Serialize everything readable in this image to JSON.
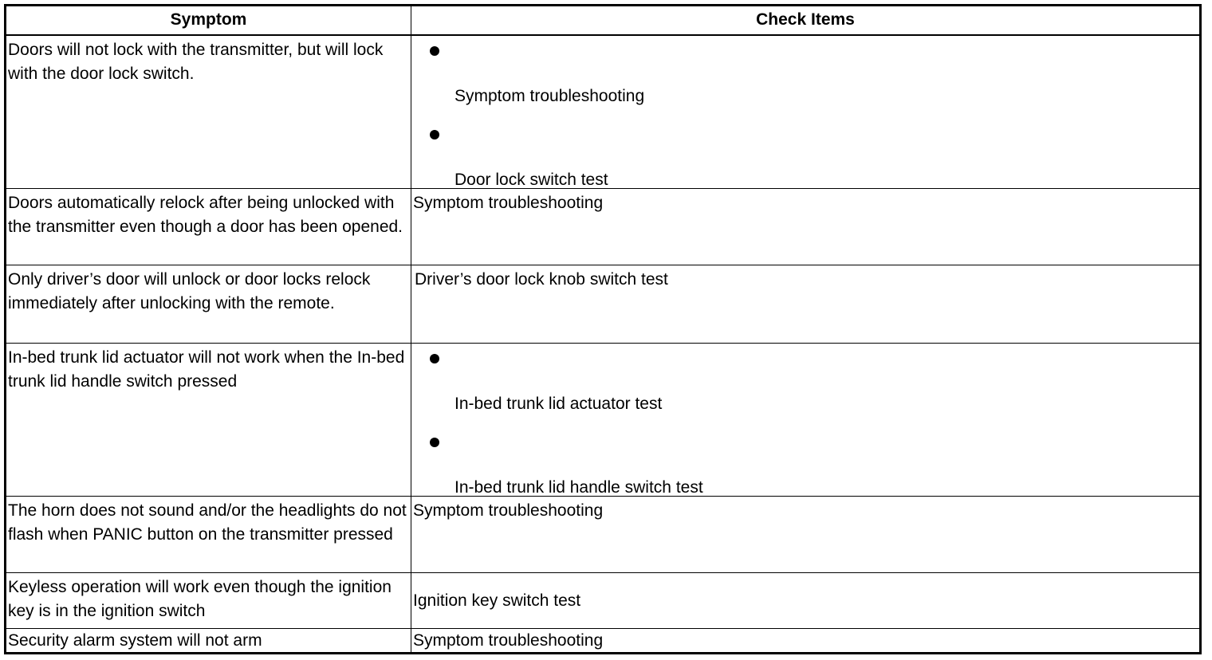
{
  "headers": {
    "symptom": "Symptom",
    "check_items": "Check Items"
  },
  "rows": [
    {
      "symptom": "Doors will not lock with the transmitter, but will lock with the door lock switch.",
      "checks": [
        "Symptom troubleshooting",
        "Door lock switch test"
      ]
    },
    {
      "symptom": "Doors automatically relock after being unlocked with the transmitter even though a door has been opened.",
      "check": "Symptom troubleshooting"
    },
    {
      "symptom": "Only driver’s door will unlock or door locks relock immediately after unlocking with the remote.",
      "check": "Driver’s door lock knob switch test"
    },
    {
      "symptom": "In-bed trunk lid actuator will not work when the In-bed trunk lid handle switch pressed",
      "checks": [
        "In-bed trunk lid actuator test",
        "In-bed trunk lid handle switch test"
      ]
    },
    {
      "symptom": "The horn does not sound and/or the headlights do not flash when PANIC button on the transmitter pressed",
      "check": "Symptom troubleshooting"
    },
    {
      "symptom": "Keyless operation will work even though the ignition key is in the ignition switch",
      "check": "Ignition key switch test"
    },
    {
      "symptom": "Security alarm system will not arm",
      "check": "Symptom troubleshooting"
    }
  ]
}
